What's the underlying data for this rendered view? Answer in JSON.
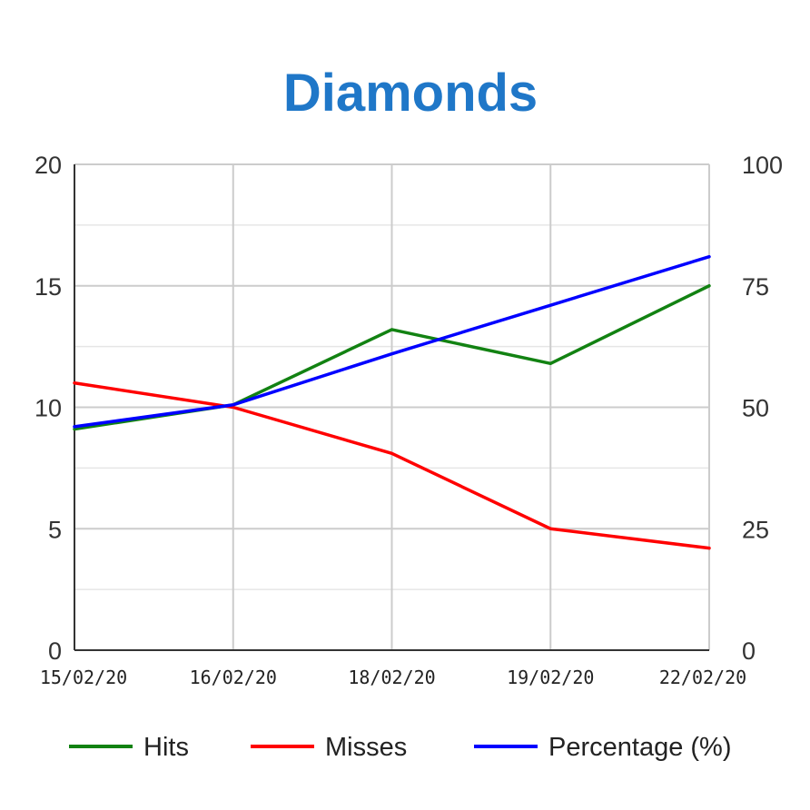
{
  "chart_data": {
    "type": "line",
    "title": "Diamonds",
    "title_color": "#1f77c8",
    "categories": [
      "15/02/20",
      "16/02/20",
      "18/02/20",
      "19/02/20",
      "22/02/20"
    ],
    "y_left": {
      "ylim": [
        0,
        20
      ],
      "ticks": [
        "0",
        "5",
        "10",
        "15",
        "20"
      ]
    },
    "y_right": {
      "ylim": [
        0,
        100
      ],
      "ticks": [
        "0",
        "25",
        "50",
        "75",
        "100"
      ]
    },
    "grid": true,
    "legend_position": "bottom",
    "series": [
      {
        "name": "Hits",
        "axis": "left",
        "color": "#128212",
        "values": [
          9.1,
          10.1,
          13.2,
          11.8,
          15.0
        ]
      },
      {
        "name": "Misses",
        "axis": "left",
        "color": "#ff0000",
        "values": [
          11.0,
          10.0,
          8.1,
          5.0,
          4.2
        ]
      },
      {
        "name": "Percentage (%)",
        "axis": "right",
        "color": "#0000ff",
        "values": [
          46,
          50.5,
          61,
          71,
          81
        ]
      }
    ]
  }
}
